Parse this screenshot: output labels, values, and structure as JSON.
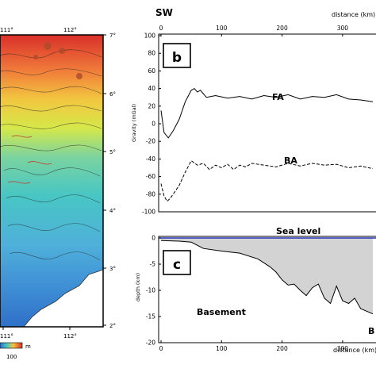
{
  "map": {
    "lon_labels_bottom": [
      "111°",
      "112°"
    ],
    "lat_labels_right": [
      "7°",
      "6°",
      "5°",
      "4°",
      "3°",
      "2°"
    ],
    "scale_label": "m",
    "scale_tick": "100"
  },
  "header": {
    "direction": "SW",
    "distance_label_top": "distance (km)"
  },
  "chart_data": [
    {
      "id": "b",
      "type": "line",
      "panel_letter": "b",
      "xlabel": "distance (km)",
      "ylabel": "Gravity (mGal)",
      "xlim": [
        0,
        350
      ],
      "ylim": [
        -100,
        100
      ],
      "xticks": [
        "0",
        "100",
        "200",
        "300"
      ],
      "yticks": [
        "100",
        "80",
        "60",
        "40",
        "20",
        "0",
        "-20",
        "-40",
        "-60",
        "-80",
        "-100"
      ],
      "series": [
        {
          "name": "FA",
          "style": "solid",
          "x": [
            0,
            5,
            12,
            20,
            30,
            40,
            50,
            55,
            60,
            65,
            75,
            90,
            110,
            130,
            150,
            170,
            190,
            210,
            230,
            250,
            270,
            290,
            310,
            330,
            350
          ],
          "y": [
            15,
            -10,
            -16,
            -8,
            5,
            25,
            38,
            40,
            36,
            38,
            30,
            32,
            29,
            31,
            28,
            32,
            30,
            33,
            28,
            31,
            30,
            33,
            28,
            27,
            25
          ]
        },
        {
          "name": "BA",
          "style": "dashed",
          "x": [
            0,
            5,
            10,
            15,
            20,
            30,
            40,
            50,
            60,
            70,
            80,
            90,
            100,
            110,
            120,
            130,
            140,
            150,
            170,
            190,
            210,
            230,
            250,
            270,
            290,
            310,
            330,
            350
          ],
          "y": [
            -68,
            -82,
            -88,
            -85,
            -80,
            -70,
            -55,
            -42,
            -47,
            -45,
            -52,
            -47,
            -50,
            -46,
            -52,
            -47,
            -49,
            -45,
            -47,
            -49,
            -45,
            -48,
            -45,
            -47,
            -46,
            -50,
            -48,
            -51
          ]
        }
      ]
    },
    {
      "id": "c",
      "type": "area",
      "panel_letter": "c",
      "xlabel": "distance (km)",
      "ylabel": "depth (km)",
      "xlim": [
        0,
        350
      ],
      "ylim": [
        -20,
        0
      ],
      "xticks": [
        "0",
        "100",
        "200",
        "300"
      ],
      "yticks": [
        "0",
        "-5",
        "-10",
        "-15",
        "-20"
      ],
      "annotations": [
        "Sea level",
        "Basement",
        "B"
      ],
      "series": [
        {
          "name": "Basement",
          "x": [
            0,
            30,
            50,
            70,
            100,
            130,
            160,
            180,
            190,
            200,
            210,
            220,
            230,
            240,
            250,
            260,
            270,
            280,
            290,
            300,
            310,
            320,
            330,
            350
          ],
          "y": [
            -0.5,
            -0.6,
            -0.8,
            -2.0,
            -2.5,
            -2.9,
            -4.0,
            -5.5,
            -6.5,
            -8.0,
            -9.0,
            -8.8,
            -10.0,
            -11.0,
            -9.5,
            -8.8,
            -11.5,
            -12.5,
            -9.2,
            -12.0,
            -12.5,
            -11.5,
            -13.5,
            -14.5
          ]
        }
      ]
    }
  ]
}
